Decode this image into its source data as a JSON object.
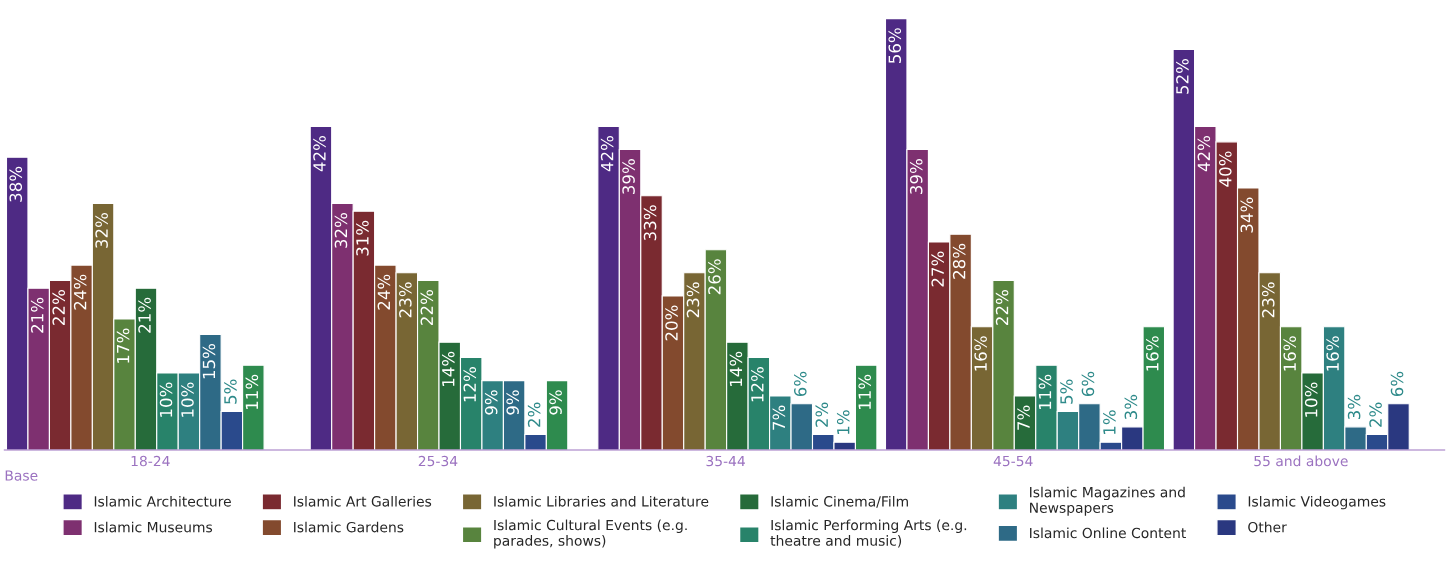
{
  "chart_data": {
    "type": "bar",
    "categories": [
      "18-24",
      "25-34",
      "35-44",
      "45-54",
      "55 and above"
    ],
    "series": [
      {
        "name": "Islamic Architecture",
        "color": "#4e2a84",
        "values": [
          38,
          42,
          42,
          56,
          52
        ],
        "value_labels": [
          "38%",
          "42%",
          "42%",
          "56%",
          "52%"
        ]
      },
      {
        "name": "Islamic Museums",
        "color": "#7e3070",
        "values": [
          21,
          32,
          39,
          39,
          42
        ],
        "value_labels": [
          "21%",
          "32%",
          "39%",
          "39%",
          "42%"
        ]
      },
      {
        "name": "Islamic Art Galleries",
        "color": "#7a2a30",
        "values": [
          22,
          31,
          33,
          27,
          40
        ],
        "value_labels": [
          "22%",
          "31%",
          "33%",
          "27%",
          "40%"
        ]
      },
      {
        "name": "Islamic Gardens",
        "color": "#834a2e",
        "values": [
          24,
          24,
          20,
          28,
          34
        ],
        "value_labels": [
          "24%",
          "24%",
          "20%",
          "28%",
          "34%"
        ]
      },
      {
        "name": "Islamic Libraries and Literature",
        "color": "#786634",
        "values": [
          32,
          23,
          23,
          16,
          23
        ],
        "value_labels": [
          "32%",
          "23%",
          "23%",
          "16%",
          "23%"
        ]
      },
      {
        "name": "Islamic Cultural Events (e.g.\nparades, shows)",
        "color": "#58843e",
        "values": [
          17,
          22,
          26,
          22,
          16
        ],
        "value_labels": [
          "17%",
          "22%",
          "26%",
          "22%",
          "16%"
        ]
      },
      {
        "name": "Islamic Cinema/Film",
        "color": "#266b3a",
        "values": [
          21,
          14,
          14,
          7,
          10
        ],
        "value_labels": [
          "21%",
          "14%",
          "14%",
          "7%",
          "10%"
        ]
      },
      {
        "name": "Islamic Performing Arts (e.g.\ntheatre and music)",
        "color": "#28836a",
        "values": [
          10,
          12,
          12,
          11,
          null
        ],
        "value_labels": [
          "10%",
          "12%",
          "12%",
          "11%",
          null
        ]
      },
      {
        "name": "Islamic Magazines and\nNewspapers",
        "color": "#2e8080",
        "values": [
          10,
          9,
          7,
          5,
          16
        ],
        "value_labels": [
          "10%",
          "9%",
          "7%",
          "5%",
          "16%"
        ]
      },
      {
        "name": "Islamic Online Content",
        "color": "#2e6a86",
        "values": [
          15,
          9,
          6,
          6,
          3
        ],
        "value_labels": [
          "15%",
          "9%",
          "6%",
          "6%",
          "3%"
        ]
      },
      {
        "name": "Islamic Videogames",
        "color": "#2a4a8c",
        "values": [
          5,
          2,
          2,
          1,
          2
        ],
        "value_labels": [
          "5%",
          "2%",
          "2%",
          "1%",
          "2%"
        ]
      },
      {
        "name": "Other",
        "color": "#2a3880",
        "values": [
          null,
          null,
          1,
          3,
          6
        ],
        "value_labels": [
          null,
          null,
          "1%",
          "3%",
          "6%"
        ]
      },
      {
        "color": "#2e8b4e",
        "values": [
          11,
          9,
          11,
          16,
          null
        ],
        "value_labels": [
          "11%",
          "9%",
          "11%",
          "16%",
          null
        ]
      }
    ],
    "annotations": [
      "Base"
    ],
    "legend": "bottom",
    "grid": false
  }
}
